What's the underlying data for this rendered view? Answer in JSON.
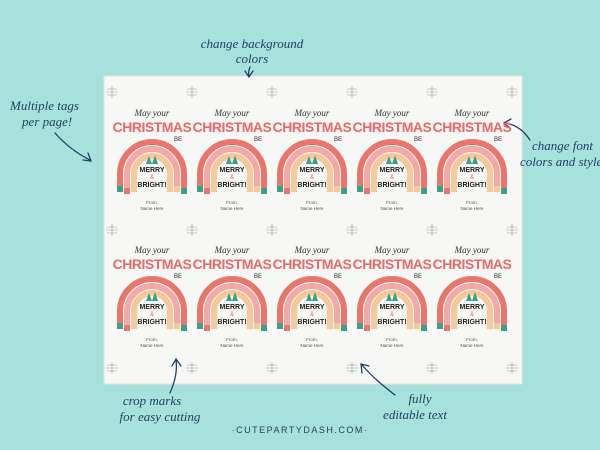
{
  "annotations": {
    "background": [
      "change background",
      "colors"
    ],
    "multiple": [
      "Multiple tags",
      "per page!"
    ],
    "font": [
      "change font",
      "colors and style"
    ],
    "crop": [
      "crop marks",
      "for easy cutting"
    ],
    "editable": [
      "fully",
      "editable text"
    ]
  },
  "tag": {
    "line1": "May your",
    "line2": "CHRISTMAS",
    "line3": "BE",
    "merry": "MERRY",
    "amp": "&",
    "bright": "BRIGHT!",
    "from": "From,",
    "name": "Name Here"
  },
  "footer": "·CUTEPARTYDASH.COM·"
}
